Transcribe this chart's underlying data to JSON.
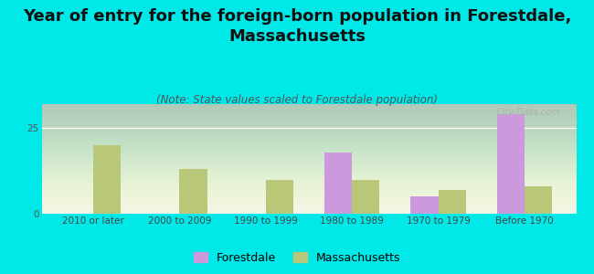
{
  "title": "Year of entry for the foreign-born population in Forestdale,\nMassachusetts",
  "subtitle": "(Note: State values scaled to Forestdale population)",
  "categories": [
    "2010 or later",
    "2000 to 2009",
    "1990 to 1999",
    "1980 to 1989",
    "1970 to 1979",
    "Before 1970"
  ],
  "forestdale_values": [
    0,
    0,
    0,
    18,
    5,
    29
  ],
  "massachusetts_values": [
    20,
    13,
    10,
    10,
    7,
    8
  ],
  "forestdale_color": "#cc99dd",
  "massachusetts_color": "#b8c878",
  "background_color": "#00e8e8",
  "plot_bg_color": "#e8f2e0",
  "title_fontsize": 13,
  "subtitle_fontsize": 8.5,
  "tick_fontsize": 7.5,
  "watermark": "City-Data.com",
  "legend_forestdale": "Forestdale",
  "legend_massachusetts": "Massachusetts",
  "ylim": [
    0,
    32
  ],
  "bar_width": 0.32
}
